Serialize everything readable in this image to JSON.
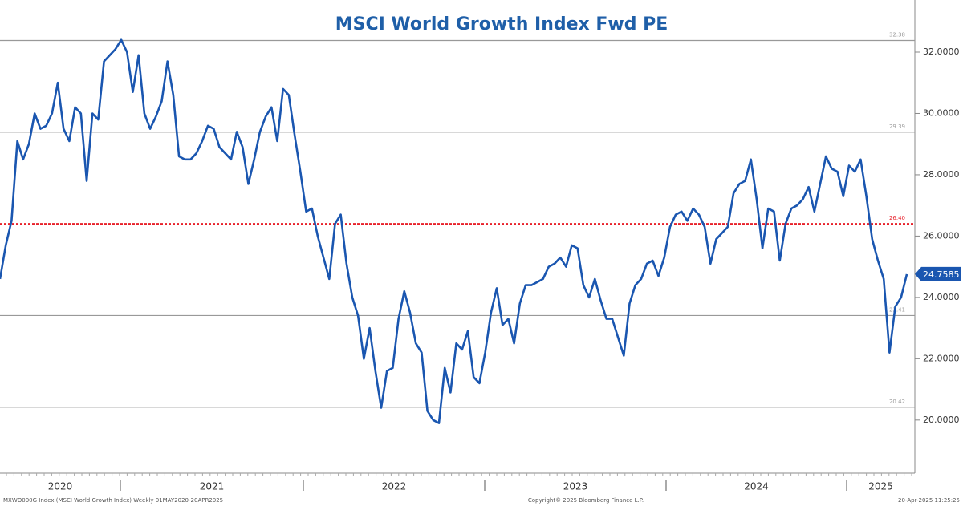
{
  "chart_data": {
    "type": "line",
    "title": "MSCI World Growth Index Fwd PE",
    "x_labels": [
      "2020",
      "2021",
      "2022",
      "2023",
      "2024",
      "2025"
    ],
    "series": [
      {
        "name": "MXWO000G Index (MSCI World Growth Index)",
        "color": "#1a56b0",
        "values": [
          24.6,
          25.7,
          26.5,
          29.1,
          28.5,
          29.0,
          30.0,
          29.5,
          29.6,
          30.0,
          31.0,
          29.5,
          29.1,
          30.2,
          30.0,
          27.8,
          30.0,
          29.8,
          31.7,
          31.9,
          32.1,
          32.4,
          32.0,
          30.7,
          31.9,
          30.0,
          29.5,
          29.9,
          30.4,
          31.7,
          30.6,
          28.6,
          28.5,
          28.5,
          28.7,
          29.1,
          29.6,
          29.5,
          28.9,
          28.7,
          28.5,
          29.4,
          28.9,
          27.7,
          28.5,
          29.4,
          29.9,
          30.2,
          29.1,
          30.8,
          30.6,
          29.3,
          28.1,
          26.8,
          26.9,
          26.0,
          25.3,
          24.6,
          26.4,
          26.7,
          25.1,
          24.0,
          23.4,
          22.0,
          23.0,
          21.6,
          20.4,
          21.6,
          21.7,
          23.3,
          24.2,
          23.5,
          22.5,
          22.2,
          20.3,
          20.0,
          19.9,
          21.7,
          20.9,
          22.5,
          22.3,
          22.9,
          21.4,
          21.2,
          22.2,
          23.5,
          24.3,
          23.1,
          23.3,
          22.5,
          23.8,
          24.4,
          24.4,
          24.5,
          24.6,
          25.0,
          25.1,
          25.3,
          25.0,
          25.7,
          25.6,
          24.4,
          24.0,
          24.6,
          23.9,
          23.3,
          23.3,
          22.7,
          22.1,
          23.8,
          24.4,
          24.6,
          25.1,
          25.2,
          24.7,
          25.3,
          26.3,
          26.7,
          26.8,
          26.5,
          26.9,
          26.7,
          26.3,
          25.1,
          25.9,
          26.1,
          26.3,
          27.4,
          27.7,
          27.8,
          28.5,
          27.2,
          25.6,
          26.9,
          26.8,
          25.2,
          26.4,
          26.9,
          27.0,
          27.2,
          27.6,
          26.8,
          27.7,
          28.6,
          28.2,
          28.1,
          27.3,
          28.3,
          28.1,
          28.5,
          27.3,
          25.9,
          25.2,
          24.6,
          22.2,
          23.7,
          24.0,
          24.7585
        ],
        "last_label": "24.7585"
      }
    ],
    "reference_lines": [
      {
        "value": 32.38,
        "label": "32.38",
        "color": "#999999"
      },
      {
        "value": 29.39,
        "label": "29.39",
        "color": "#999999"
      },
      {
        "value": 26.4,
        "label": "26.40",
        "color": "#e8202a"
      },
      {
        "value": 23.41,
        "label": "23.41",
        "color": "#999999"
      },
      {
        "value": 20.42,
        "label": "20.42",
        "color": "#999999"
      }
    ],
    "ylim": [
      18.4,
      33.7
    ],
    "yticks": [
      {
        "value": 20,
        "label": "20.0000"
      },
      {
        "value": 22,
        "label": "22.0000"
      },
      {
        "value": 24,
        "label": "24.0000"
      },
      {
        "value": 26,
        "label": "26.0000"
      },
      {
        "value": 28,
        "label": "28.0000"
      },
      {
        "value": 30,
        "label": "30.0000"
      },
      {
        "value": 32,
        "label": "32.0000"
      }
    ],
    "footer_left": "MXWO000G Index (MSCI World Growth Index)  Weekly 01MAY2020-20APR2025",
    "footer_center": "Copyright© 2025 Bloomberg Finance L.P.",
    "footer_right": "20-Apr-2025 11:25:25"
  }
}
